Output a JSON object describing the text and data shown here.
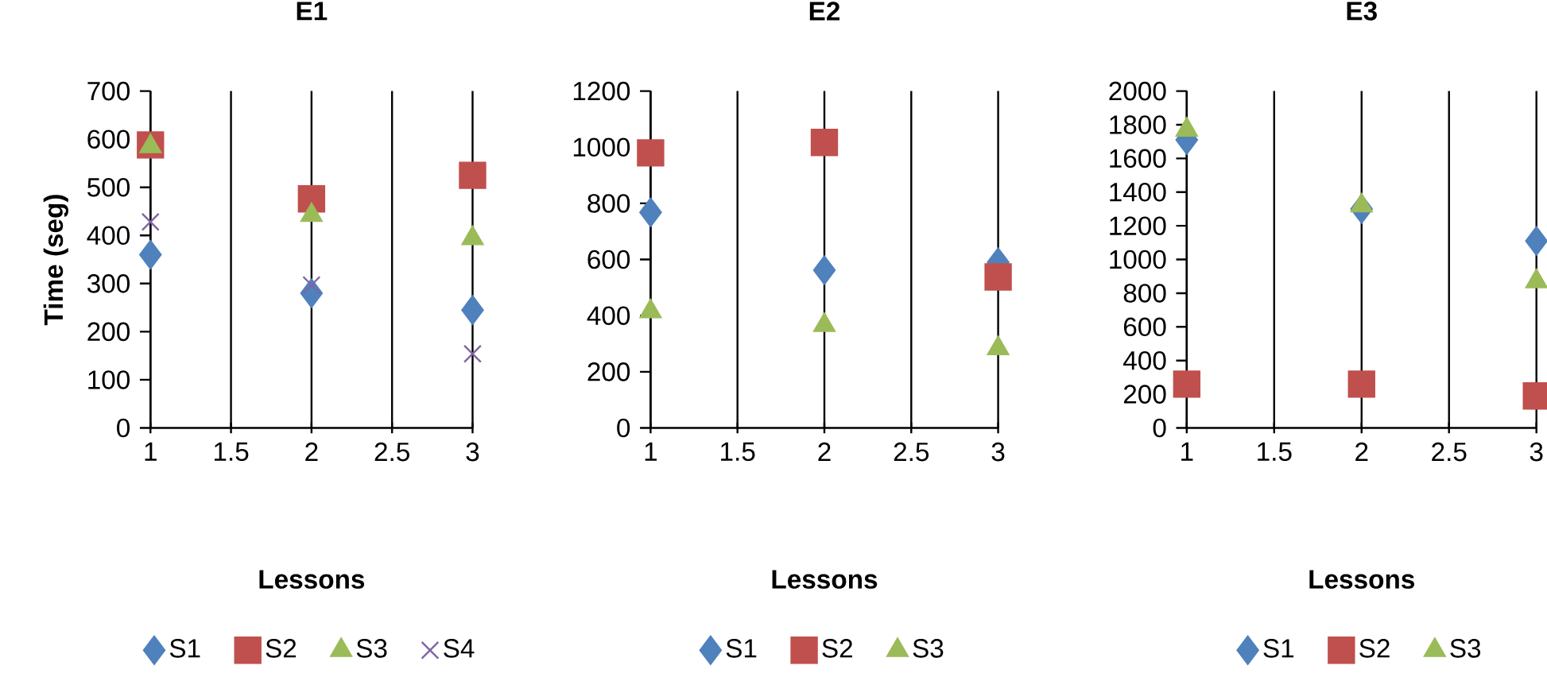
{
  "chart_data": [
    {
      "type": "scatter",
      "title": "E1",
      "xlabel": "Lessons",
      "ylabel": "Time (seg)",
      "xlim": [
        1,
        3
      ],
      "xticks": [
        1,
        1.5,
        2,
        2.5,
        3
      ],
      "ylim": [
        0,
        700
      ],
      "yticks": [
        0,
        100,
        200,
        300,
        400,
        500,
        600,
        700
      ],
      "grid": "x",
      "legend": "bottom",
      "series": [
        {
          "name": "S1",
          "color": "#4f81bd",
          "marker": "diamond",
          "x": [
            1,
            2,
            3
          ],
          "values": [
            360,
            280,
            245
          ]
        },
        {
          "name": "S2",
          "color": "#c0504d",
          "marker": "square",
          "x": [
            1,
            2,
            3
          ],
          "values": [
            588,
            476,
            525
          ]
        },
        {
          "name": "S3",
          "color": "#9bbb59",
          "marker": "triangle",
          "x": [
            1,
            2,
            3
          ],
          "values": [
            585,
            442,
            394
          ]
        },
        {
          "name": "S4",
          "color": "#8064a2",
          "marker": "cross",
          "x": [
            1,
            2,
            3
          ],
          "values": [
            428,
            297,
            154
          ]
        }
      ]
    },
    {
      "type": "scatter",
      "title": "E2",
      "xlabel": "Lessons",
      "xlim": [
        1,
        3
      ],
      "xticks": [
        1,
        1.5,
        2,
        2.5,
        3
      ],
      "ylim": [
        0,
        1200
      ],
      "yticks": [
        0,
        200,
        400,
        600,
        800,
        1000,
        1200
      ],
      "grid": "x",
      "legend": "bottom",
      "series": [
        {
          "name": "S1",
          "color": "#4f81bd",
          "marker": "diamond",
          "x": [
            1,
            2,
            3
          ],
          "values": [
            768,
            562,
            590
          ]
        },
        {
          "name": "S2",
          "color": "#c0504d",
          "marker": "square",
          "x": [
            1,
            2,
            3
          ],
          "values": [
            980,
            1017,
            538
          ]
        },
        {
          "name": "S3",
          "color": "#9bbb59",
          "marker": "triangle",
          "x": [
            1,
            2,
            3
          ],
          "values": [
            415,
            366,
            283
          ]
        }
      ]
    },
    {
      "type": "scatter",
      "title": "E3",
      "xlabel": "Lessons",
      "xlim": [
        1,
        3
      ],
      "xticks": [
        1,
        1.5,
        2,
        2.5,
        3
      ],
      "ylim": [
        0,
        2000
      ],
      "yticks": [
        0,
        200,
        400,
        600,
        800,
        1000,
        1200,
        1400,
        1600,
        1800,
        2000
      ],
      "grid": "x",
      "legend": "bottom",
      "series": [
        {
          "name": "S1",
          "color": "#4f81bd",
          "marker": "diamond",
          "x": [
            1,
            2,
            3
          ],
          "values": [
            1710,
            1300,
            1110
          ]
        },
        {
          "name": "S2",
          "color": "#c0504d",
          "marker": "square",
          "x": [
            1,
            2,
            3
          ],
          "values": [
            260,
            260,
            190
          ]
        },
        {
          "name": "S3",
          "color": "#9bbb59",
          "marker": "triangle",
          "x": [
            1,
            2,
            3
          ],
          "values": [
            1770,
            1320,
            870
          ]
        }
      ]
    }
  ]
}
